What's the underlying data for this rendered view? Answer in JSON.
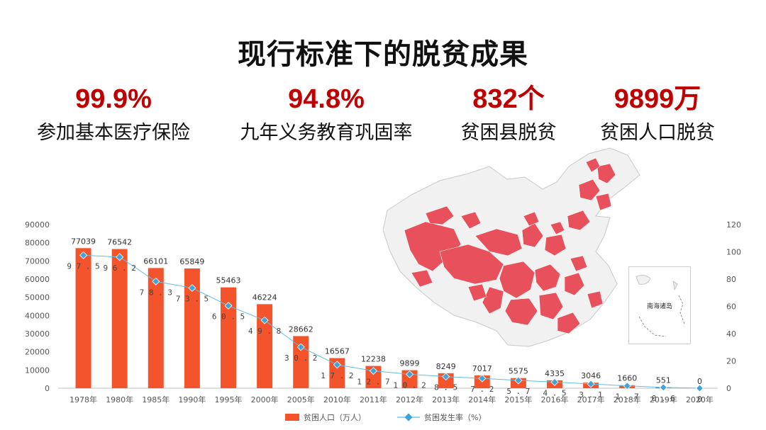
{
  "title": "现行标准下的脱贫成果",
  "colors": {
    "stat_value": "#c00000",
    "bar": "#f4542b",
    "line": "#5bc0e8",
    "marker": "#3fa4d8",
    "map_fill": "#e8505b"
  },
  "stats": [
    {
      "value": "99.9%",
      "label": "参加基本医疗保险"
    },
    {
      "value": "94.8%",
      "label": "九年义务教育巩固率"
    },
    {
      "value": "832个",
      "label": "贫困县脱贫"
    },
    {
      "value": "9899万",
      "label": "贫困人口脱贫"
    }
  ],
  "map": {
    "inset_label": "南海诸岛"
  },
  "chart_data": {
    "type": "bar",
    "categories": [
      "1978年",
      "1980年",
      "1985年",
      "1990年",
      "1995年",
      "2000年",
      "2005年",
      "2010年",
      "2011年",
      "2012年",
      "2013年",
      "2014年",
      "2015年",
      "2016年",
      "2017年",
      "2018年",
      "2019年",
      "2020年"
    ],
    "series": [
      {
        "name": "贫困人口（万人）",
        "type": "bar",
        "axis": "left",
        "values": [
          77039,
          76542,
          66101,
          65849,
          55463,
          46224,
          28662,
          16567,
          12238,
          9899,
          8249,
          7017,
          5575,
          4335,
          3046,
          1660,
          551,
          0
        ],
        "labels": [
          "77039",
          "76542",
          "66101",
          "65849",
          "55463",
          "46224",
          "28662",
          "16567",
          "12238",
          "9899",
          "8249",
          "7017",
          "5575",
          "4335",
          "3046",
          "1660",
          "551",
          "0"
        ]
      },
      {
        "name": "贫困发生率（%）",
        "type": "line",
        "axis": "right",
        "values": [
          97.5,
          96.2,
          78.3,
          73.5,
          60.5,
          49.8,
          30.2,
          17.2,
          12.7,
          10.2,
          8.5,
          7.2,
          5.7,
          4.5,
          3.1,
          1.7,
          0.6,
          0
        ],
        "labels": [
          "97.5",
          "96.2",
          "78.3",
          "73.5",
          "60.5",
          "49.8",
          "30.2",
          "17.2",
          "12.7",
          "10.2",
          "8.5",
          "7.2",
          "5.7",
          "4.5",
          "3.1",
          "1.7",
          "0.6",
          "0"
        ]
      }
    ],
    "ylim_left": [
      0,
      90000
    ],
    "yticks_left": [
      "0",
      "10000",
      "20000",
      "30000",
      "40000",
      "50000",
      "60000",
      "70000",
      "80000",
      "90000"
    ],
    "ylim_right": [
      0,
      120
    ],
    "yticks_right": [
      "0",
      "20",
      "40",
      "60",
      "80",
      "100",
      "120"
    ],
    "legend_position": "bottom-center",
    "grid": false
  }
}
